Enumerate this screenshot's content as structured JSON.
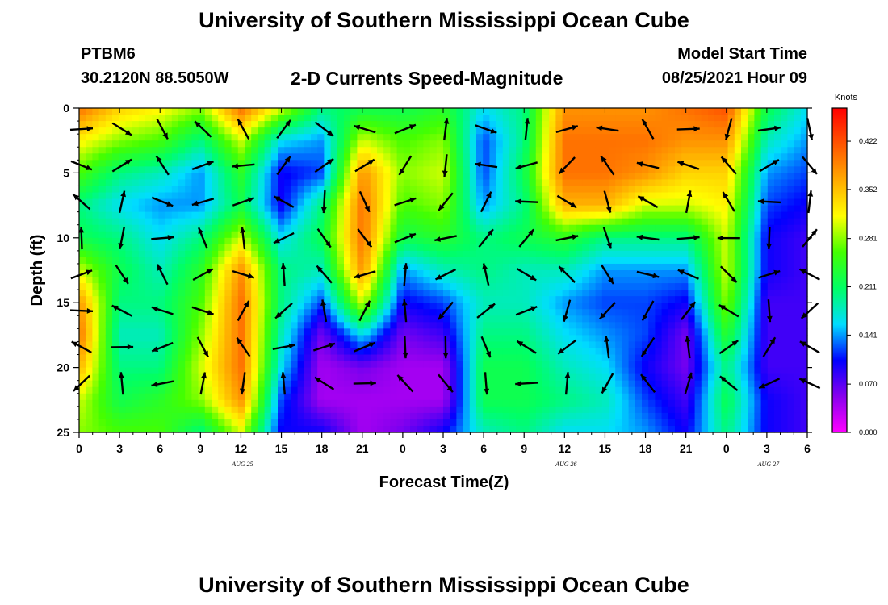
{
  "header": {
    "title": "University of Southern Mississippi Ocean Cube",
    "station": "PTBM6",
    "coords": "30.2120N  88.5050W",
    "subtitle": "2-D Currents Speed-Magnitude",
    "model_label": "Model Start Time",
    "model_time": "08/25/2021 Hour 09"
  },
  "footer": {
    "title": "University of Southern Mississippi Ocean Cube"
  },
  "chart_data": {
    "type": "heatmap",
    "title": "2-D Currents Speed-Magnitude",
    "xlabel": "Forecast Time(Z)",
    "ylabel": "Depth (ft)",
    "x_ticks": [
      "0",
      "3",
      "6",
      "9",
      "12",
      "15",
      "18",
      "21",
      "0",
      "3",
      "6",
      "9",
      "12",
      "15",
      "18",
      "21",
      "0",
      "3",
      "6"
    ],
    "x_hours": [
      0,
      54
    ],
    "date_labels": [
      {
        "hour": 12,
        "label": "AUG 25"
      },
      {
        "hour": 36,
        "label": "AUG 26"
      },
      {
        "hour": 51,
        "label": "AUG 27"
      }
    ],
    "y_ticks": [
      "0",
      "5",
      "10",
      "15",
      "20",
      "25"
    ],
    "ylim": [
      0,
      25
    ],
    "colorbar": {
      "units": "Knots",
      "ticks": [
        "0.422",
        "0.352",
        "0.281",
        "0.211",
        "0.141",
        "0.070",
        "0.000"
      ],
      "range": [
        0,
        0.47
      ],
      "colors": [
        "#ff00ff",
        "#8800ee",
        "#0000ff",
        "#00ddff",
        "#00ff66",
        "#44ff00",
        "#ffff00",
        "#ffaa00",
        "#ff5500",
        "#ff0000"
      ]
    },
    "speed_bands": [
      {
        "hour": 0,
        "values": [
          0.4,
          0.32,
          0.26,
          0.2,
          0.22,
          0.3,
          0.38,
          0.4,
          0.36,
          0.3,
          0.28
        ]
      },
      {
        "hour": 3,
        "values": [
          0.34,
          0.28,
          0.2,
          0.16,
          0.2,
          0.22,
          0.2,
          0.18,
          0.2,
          0.22,
          0.26
        ]
      },
      {
        "hour": 6,
        "values": [
          0.32,
          0.26,
          0.18,
          0.14,
          0.16,
          0.18,
          0.2,
          0.18,
          0.2,
          0.24,
          0.26
        ]
      },
      {
        "hour": 9,
        "values": [
          0.28,
          0.2,
          0.14,
          0.14,
          0.2,
          0.24,
          0.26,
          0.28,
          0.3,
          0.28,
          0.2
        ]
      },
      {
        "hour": 12,
        "values": [
          0.4,
          0.3,
          0.24,
          0.22,
          0.3,
          0.38,
          0.4,
          0.4,
          0.4,
          0.38,
          0.3
        ]
      },
      {
        "hour": 15,
        "values": [
          0.3,
          0.16,
          0.1,
          0.1,
          0.16,
          0.2,
          0.2,
          0.18,
          0.16,
          0.12,
          0.1
        ]
      },
      {
        "hour": 18,
        "values": [
          0.2,
          0.14,
          0.12,
          0.2,
          0.22,
          0.18,
          0.12,
          0.06,
          0.04,
          0.04,
          0.1
        ]
      },
      {
        "hour": 21,
        "values": [
          0.22,
          0.3,
          0.38,
          0.4,
          0.4,
          0.38,
          0.3,
          0.16,
          0.06,
          0.04,
          0.04
        ]
      },
      {
        "hour": 24,
        "values": [
          0.22,
          0.26,
          0.28,
          0.26,
          0.22,
          0.14,
          0.1,
          0.06,
          0.04,
          0.04,
          0.06
        ]
      },
      {
        "hour": 27,
        "values": [
          0.24,
          0.28,
          0.3,
          0.28,
          0.24,
          0.18,
          0.12,
          0.08,
          0.04,
          0.04,
          0.1
        ]
      },
      {
        "hour": 30,
        "values": [
          0.16,
          0.12,
          0.12,
          0.14,
          0.2,
          0.2,
          0.18,
          0.2,
          0.22,
          0.22,
          0.18
        ]
      },
      {
        "hour": 33,
        "values": [
          0.2,
          0.2,
          0.22,
          0.2,
          0.22,
          0.18,
          0.18,
          0.2,
          0.22,
          0.22,
          0.2
        ]
      },
      {
        "hour": 36,
        "values": [
          0.38,
          0.4,
          0.4,
          0.36,
          0.24,
          0.18,
          0.14,
          0.16,
          0.18,
          0.2,
          0.16
        ]
      },
      {
        "hour": 39,
        "values": [
          0.38,
          0.4,
          0.4,
          0.36,
          0.2,
          0.14,
          0.12,
          0.14,
          0.16,
          0.18,
          0.16
        ]
      },
      {
        "hour": 42,
        "values": [
          0.38,
          0.4,
          0.38,
          0.3,
          0.2,
          0.14,
          0.12,
          0.12,
          0.1,
          0.12,
          0.14
        ]
      },
      {
        "hour": 45,
        "values": [
          0.4,
          0.38,
          0.34,
          0.3,
          0.2,
          0.14,
          0.1,
          0.06,
          0.06,
          0.08,
          0.1
        ]
      },
      {
        "hour": 48,
        "values": [
          0.42,
          0.38,
          0.34,
          0.32,
          0.3,
          0.3,
          0.28,
          0.24,
          0.2,
          0.22,
          0.2
        ]
      },
      {
        "hour": 51,
        "values": [
          0.22,
          0.18,
          0.14,
          0.12,
          0.1,
          0.1,
          0.08,
          0.08,
          0.08,
          0.1,
          0.1
        ]
      },
      {
        "hour": 54,
        "values": [
          0.16,
          0.14,
          0.12,
          0.1,
          0.08,
          0.08,
          0.08,
          0.08,
          0.08,
          0.08,
          0.08
        ]
      }
    ]
  }
}
